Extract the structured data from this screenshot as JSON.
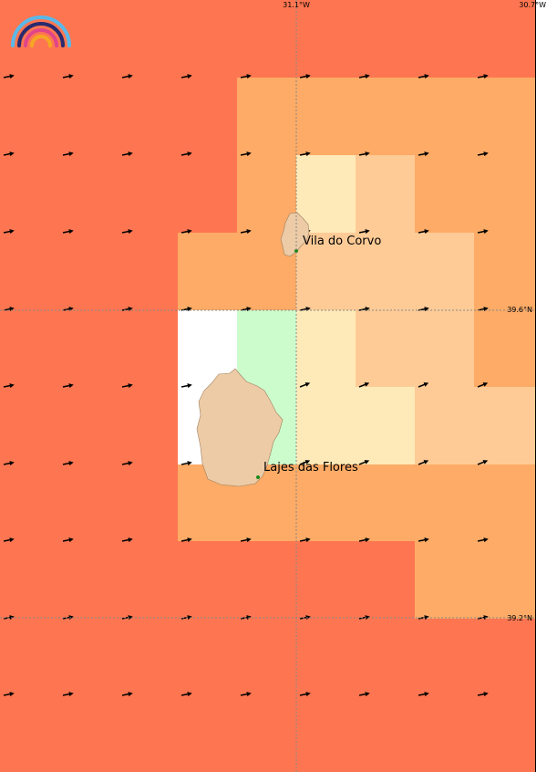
{
  "map": {
    "longitude_labels": [
      "31.1°W",
      "30.7°W"
    ],
    "latitude_labels": [
      "39.6°N",
      "39.2°N"
    ],
    "places": [
      {
        "name": "Vila do Corvo"
      },
      {
        "name": "Lajes das Flores"
      }
    ]
  }
}
